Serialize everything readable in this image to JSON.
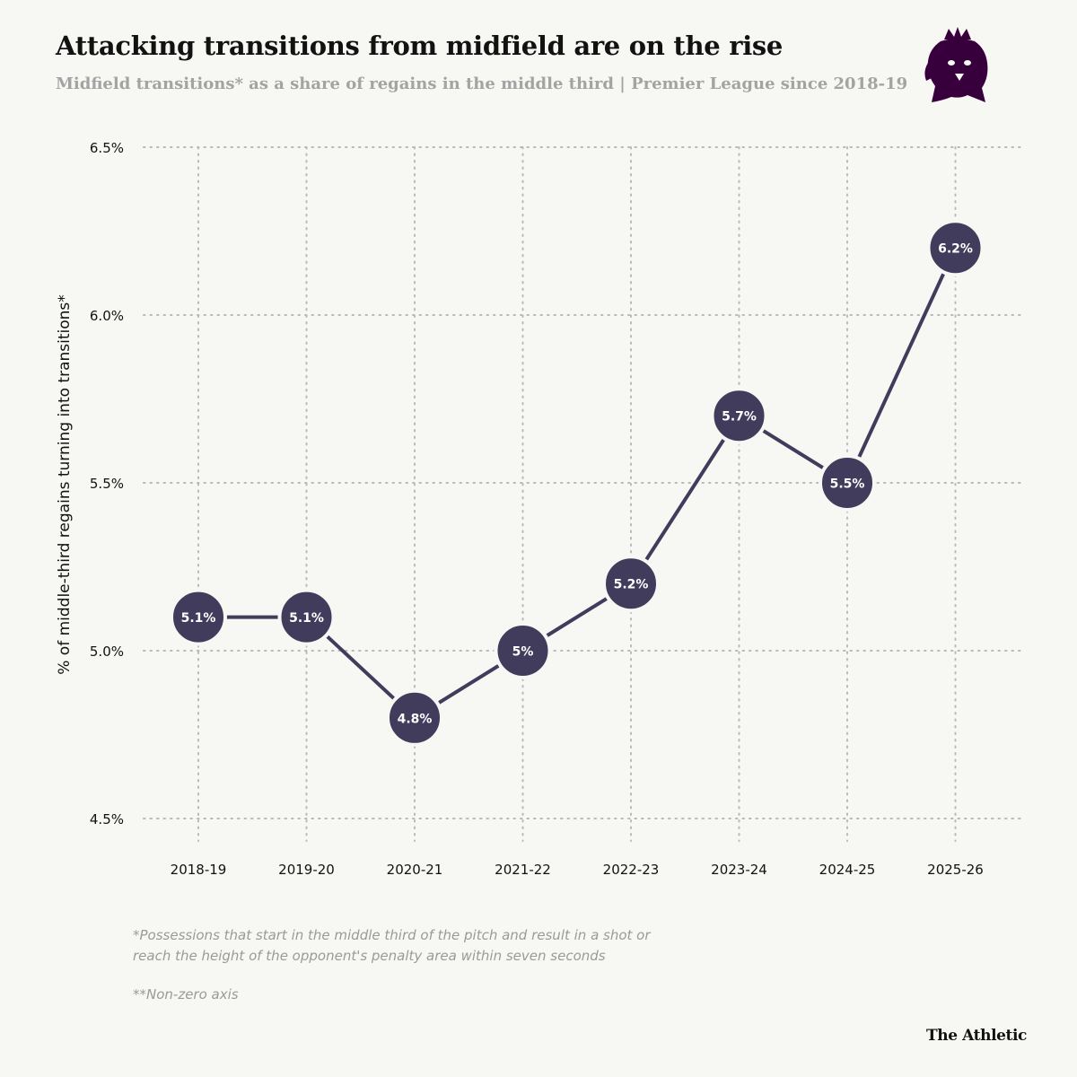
{
  "header": {
    "title": "Attacking transitions from midfield are on the rise",
    "subtitle": "Midfield transitions* as a share of regains in the middle third | Premier League since 2018-19"
  },
  "colors": {
    "marker": "#413b5c",
    "line": "#413b5c",
    "grid": "#b9b9b9",
    "background": "#f7f7f3",
    "logo": "#37003c"
  },
  "logo": {
    "icon": "premier-league-lion-icon"
  },
  "chart_data": {
    "type": "line",
    "title": "Attacking transitions from midfield are on the rise",
    "xlabel": "",
    "ylabel": "% of middle-third regains turning into transitions*",
    "categories": [
      "2018-19",
      "2019-20",
      "2020-21",
      "2021-22",
      "2022-23",
      "2023-24",
      "2024-25",
      "2025-26"
    ],
    "values": [
      5.1,
      5.1,
      4.8,
      5.0,
      5.2,
      5.7,
      5.5,
      6.2
    ],
    "data_labels": [
      "5.1%",
      "5.1%",
      "4.8%",
      "5%",
      "5.2%",
      "5.7%",
      "5.5%",
      "6.2%"
    ],
    "ylim": [
      4.5,
      6.5
    ],
    "yticks": [
      4.5,
      5.0,
      5.5,
      6.0,
      6.5
    ],
    "ytick_labels": [
      "4.5%",
      "5.0%",
      "5.5%",
      "6.0%",
      "6.5%"
    ],
    "grid": true
  },
  "footnotes": {
    "definition": "*Possessions that start in the middle third of the pitch and result in a shot or reach the height of the opponent's penalty area within seven seconds",
    "axis_note": "**Non-zero axis"
  },
  "brand": "The Athletic"
}
